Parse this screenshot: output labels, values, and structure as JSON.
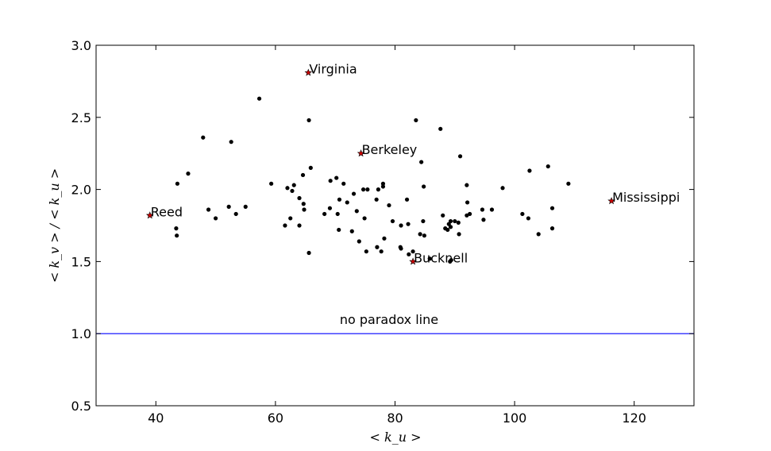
{
  "chart_data": {
    "type": "scatter",
    "xlabel": "< k_u >",
    "ylabel": "< k_v > / < k_u >",
    "xlim": [
      30,
      130
    ],
    "ylim": [
      0.5,
      3.0
    ],
    "xticks": [
      "40",
      "60",
      "80",
      "100",
      "120"
    ],
    "yticks": [
      "0.5",
      "1.0",
      "1.5",
      "2.0",
      "2.5",
      "3.0"
    ],
    "grid": false,
    "colors": {
      "points": "#000000",
      "highlight": "#cc0000",
      "reference_line": "#0000ff"
    },
    "reference_line": {
      "y": 1.0,
      "label": "no paradox line",
      "label_x": 79,
      "label_y": 1.1
    },
    "highlighted": [
      {
        "name": "Virginia",
        "x": 65.5,
        "y": 2.81
      },
      {
        "name": "Berkeley",
        "x": 74.3,
        "y": 2.25
      },
      {
        "name": "Mississippi",
        "x": 116.2,
        "y": 1.92
      },
      {
        "name": "Reed",
        "x": 39.0,
        "y": 1.82
      },
      {
        "name": "Bucknell",
        "x": 83.0,
        "y": 1.5
      }
    ],
    "points": [
      [
        57.3,
        2.63
      ],
      [
        83.5,
        2.48
      ],
      [
        65.6,
        2.48
      ],
      [
        87.6,
        2.42
      ],
      [
        47.9,
        2.36
      ],
      [
        52.6,
        2.33
      ],
      [
        90.9,
        2.23
      ],
      [
        84.4,
        2.19
      ],
      [
        105.6,
        2.16
      ],
      [
        65.9,
        2.15
      ],
      [
        102.5,
        2.13
      ],
      [
        45.4,
        2.11
      ],
      [
        64.6,
        2.1
      ],
      [
        70.2,
        2.08
      ],
      [
        69.2,
        2.06
      ],
      [
        71.4,
        2.04
      ],
      [
        59.3,
        2.04
      ],
      [
        43.6,
        2.04
      ],
      [
        78.0,
        2.04
      ],
      [
        109.0,
        2.04
      ],
      [
        63.1,
        2.03
      ],
      [
        78.0,
        2.02
      ],
      [
        84.8,
        2.02
      ],
      [
        92.0,
        2.03
      ],
      [
        62.0,
        2.01
      ],
      [
        98.0,
        2.01
      ],
      [
        74.7,
        2.0
      ],
      [
        75.4,
        2.0
      ],
      [
        77.2,
        2.0
      ],
      [
        62.8,
        1.99
      ],
      [
        73.1,
        1.97
      ],
      [
        64.0,
        1.94
      ],
      [
        70.7,
        1.93
      ],
      [
        76.9,
        1.93
      ],
      [
        82.0,
        1.93
      ],
      [
        72.0,
        1.91
      ],
      [
        92.1,
        1.91
      ],
      [
        64.7,
        1.9
      ],
      [
        79.0,
        1.89
      ],
      [
        52.2,
        1.88
      ],
      [
        55.0,
        1.88
      ],
      [
        69.1,
        1.87
      ],
      [
        64.8,
        1.86
      ],
      [
        73.6,
        1.85
      ],
      [
        94.6,
        1.86
      ],
      [
        96.2,
        1.86
      ],
      [
        106.3,
        1.87
      ],
      [
        48.8,
        1.86
      ],
      [
        53.4,
        1.83
      ],
      [
        68.2,
        1.83
      ],
      [
        70.4,
        1.83
      ],
      [
        92.5,
        1.83
      ],
      [
        92.0,
        1.82
      ],
      [
        101.3,
        1.83
      ],
      [
        88.0,
        1.82
      ],
      [
        74.9,
        1.8
      ],
      [
        62.5,
        1.8
      ],
      [
        50.0,
        1.8
      ],
      [
        102.3,
        1.8
      ],
      [
        94.8,
        1.79
      ],
      [
        79.6,
        1.78
      ],
      [
        84.7,
        1.78
      ],
      [
        89.3,
        1.78
      ],
      [
        90.0,
        1.78
      ],
      [
        82.2,
        1.76
      ],
      [
        89.0,
        1.76
      ],
      [
        90.6,
        1.77
      ],
      [
        81.0,
        1.75
      ],
      [
        64.0,
        1.75
      ],
      [
        61.6,
        1.75
      ],
      [
        89.3,
        1.74
      ],
      [
        88.4,
        1.73
      ],
      [
        88.8,
        1.72
      ],
      [
        106.3,
        1.73
      ],
      [
        43.4,
        1.73
      ],
      [
        70.6,
        1.72
      ],
      [
        72.8,
        1.71
      ],
      [
        84.2,
        1.69
      ],
      [
        84.9,
        1.68
      ],
      [
        90.7,
        1.69
      ],
      [
        104.0,
        1.69
      ],
      [
        43.5,
        1.68
      ],
      [
        78.2,
        1.66
      ],
      [
        74.0,
        1.64
      ],
      [
        77.0,
        1.6
      ],
      [
        80.9,
        1.6
      ],
      [
        81.0,
        1.59
      ],
      [
        75.2,
        1.57
      ],
      [
        77.7,
        1.57
      ],
      [
        83.0,
        1.57
      ],
      [
        65.6,
        1.56
      ],
      [
        82.3,
        1.55
      ],
      [
        85.8,
        1.52
      ],
      [
        89.2,
        1.5
      ],
      [
        89.4,
        1.51
      ]
    ]
  }
}
